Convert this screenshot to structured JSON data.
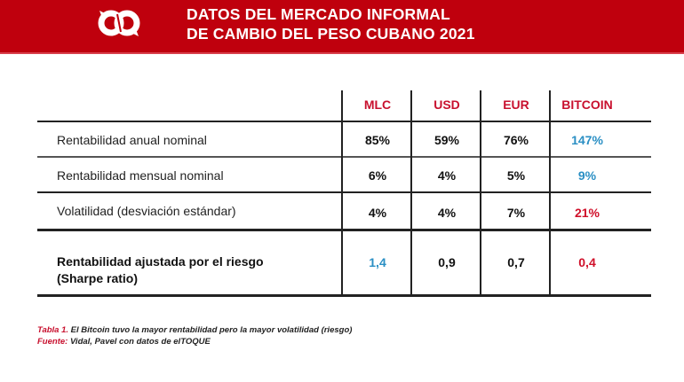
{
  "header": {
    "logo": "eltoque-logo",
    "title_line1": "DATOS DEL MERCADO INFORMAL",
    "title_line2": "DE CAMBIO DEL PESO CUBANO 2021"
  },
  "colors": {
    "banner": "#bf000d",
    "header_text": "#c8102e",
    "highlight_best": "#2a8fc4",
    "highlight_worst": "#d0102a"
  },
  "table": {
    "columns": [
      "MLC",
      "USD",
      "EUR",
      "BITCOIN"
    ],
    "rows": [
      {
        "label": "Rentabilidad anual nominal",
        "values": [
          "85%",
          "59%",
          "76%",
          "147%"
        ]
      },
      {
        "label": "Rentabilidad mensual nominal",
        "values": [
          "6%",
          "4%",
          "5%",
          "9%"
        ]
      },
      {
        "label": "Volatilidad (desviación estándar)",
        "values": [
          "4%",
          "4%",
          "7%",
          "21%"
        ]
      },
      {
        "label_line1": "Rentabilidad ajustada por el riesgo",
        "label_line2": "(Sharpe ratio)",
        "values": [
          "1,4",
          "0,9",
          "0,7",
          "0,4"
        ]
      }
    ]
  },
  "caption": {
    "table_label": "Tabla 1.",
    "table_text": "El Bitcoin tuvo la mayor rentabilidad pero la mayor volatilidad (riesgo)",
    "source_label": "Fuente:",
    "source_text": "Vidal, Pavel con datos de elTOQUE"
  }
}
